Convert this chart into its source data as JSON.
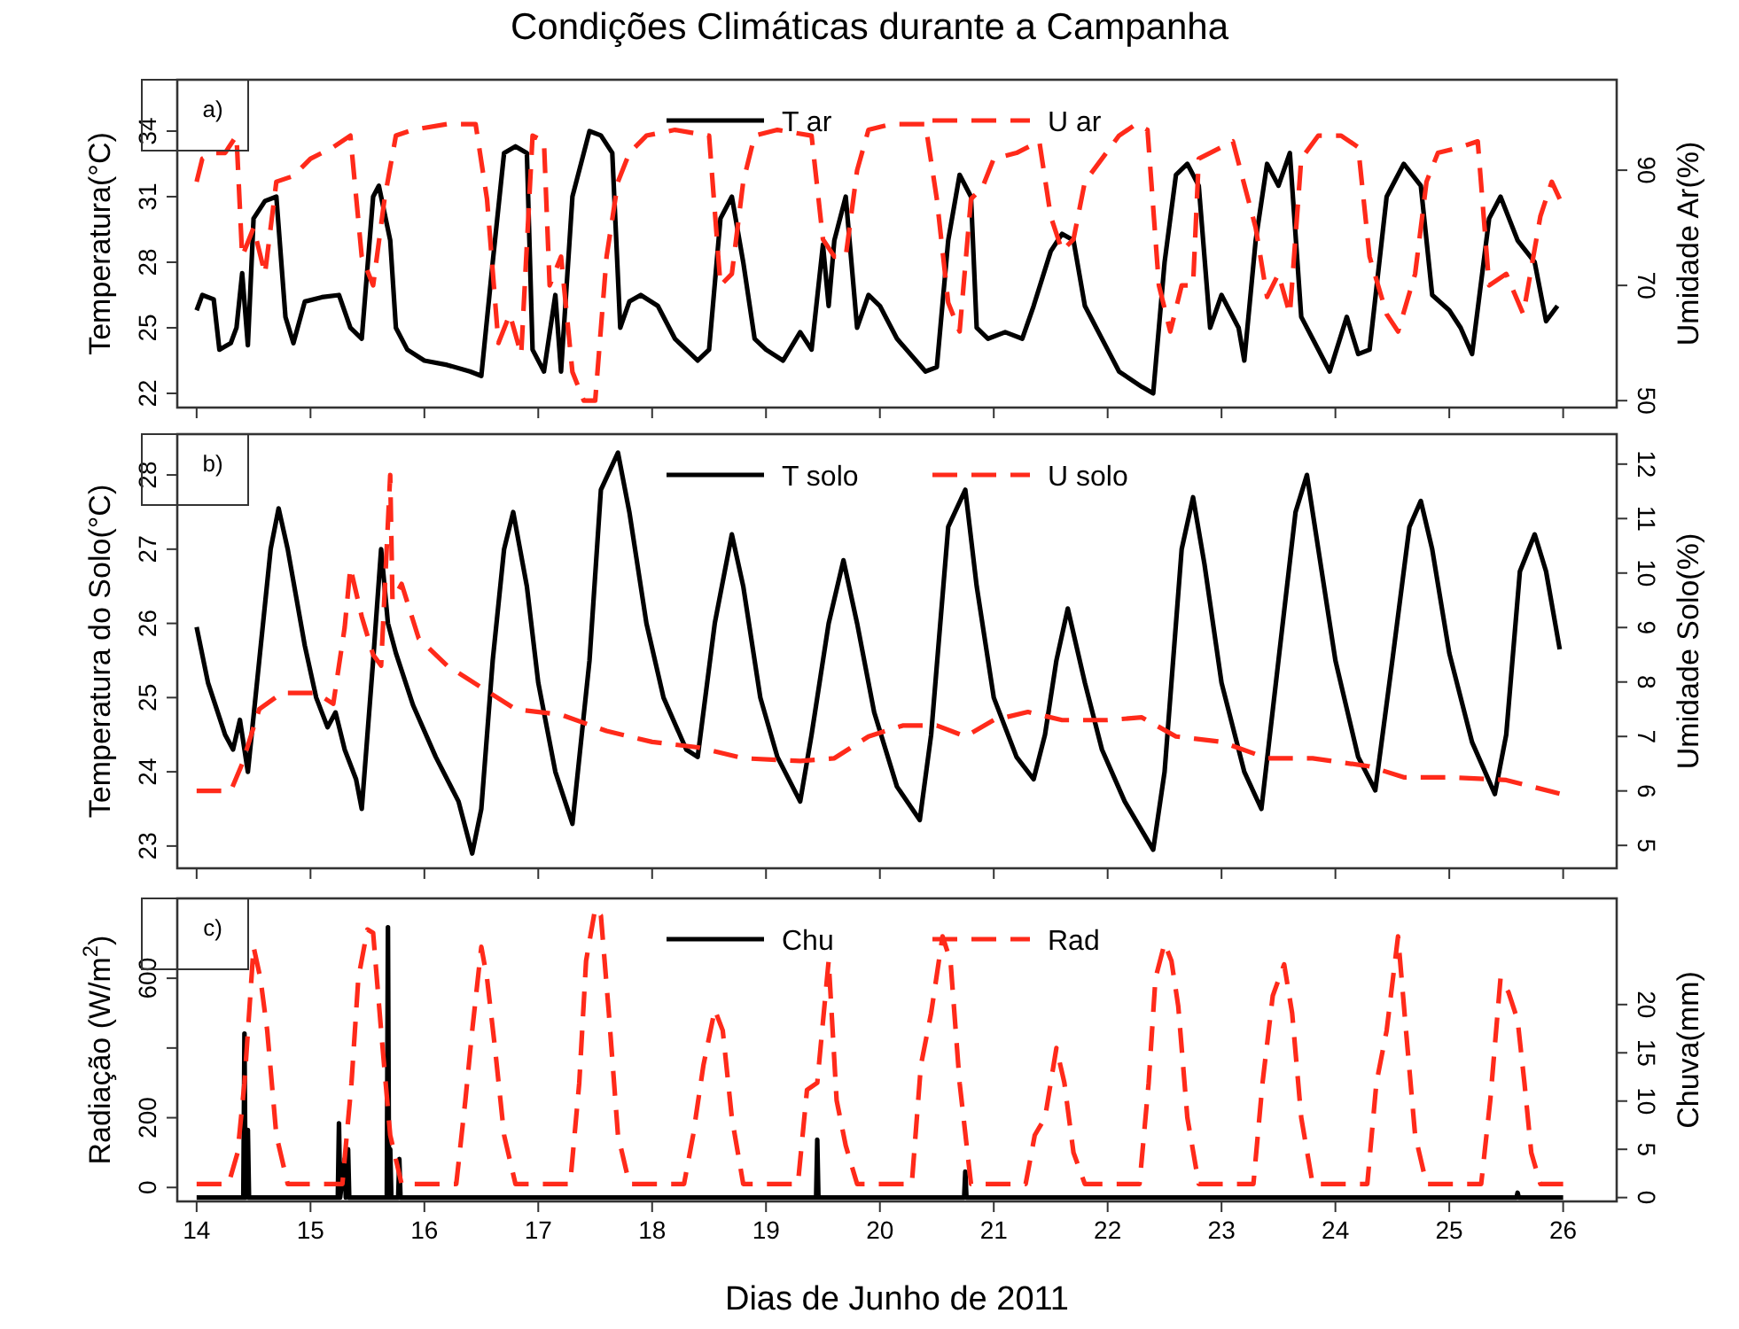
{
  "chart_data": [
    {
      "type": "line",
      "title": "Condições Climáticas durante a Campanha",
      "ylabel": "Temperatura(°C)",
      "y2label": "Umidade Ar(%)",
      "annotations": [
        "a)"
      ],
      "legend": "top",
      "grid": false,
      "tick_labels": "y",
      "xlim": [
        13.83,
        26.47
      ],
      "xticks": [
        {
          "value": 14,
          "label": null
        },
        {
          "value": 15,
          "label": null
        },
        {
          "value": 16,
          "label": null
        },
        {
          "value": 17,
          "label": null
        },
        {
          "value": 18,
          "label": null
        },
        {
          "value": 19,
          "label": null
        },
        {
          "value": 20,
          "label": null
        },
        {
          "value": 21,
          "label": null
        },
        {
          "value": 22,
          "label": null
        },
        {
          "value": 23,
          "label": null
        },
        {
          "value": 24,
          "label": null
        },
        {
          "value": 25,
          "label": null
        },
        {
          "value": 26,
          "label": null
        }
      ],
      "ylim": [
        21.35,
        36.35
      ],
      "yticks": [
        22,
        25,
        28,
        31,
        34
      ],
      "y2lim": [
        48.8,
        105.7
      ],
      "y2ticks": [
        50,
        70,
        90
      ],
      "series": [
        {
          "name": "T ar",
          "color": "#000000",
          "line_style": "solid",
          "x": [
            14.0,
            14.05,
            14.15,
            14.2,
            14.3,
            14.35,
            14.4,
            14.45,
            14.5,
            14.6,
            14.7,
            14.78,
            14.85,
            14.95,
            15.1,
            15.25,
            15.35,
            15.45,
            15.55,
            15.6,
            15.7,
            15.75,
            15.85,
            16.0,
            16.2,
            16.4,
            16.5,
            16.6,
            16.7,
            16.8,
            16.9,
            16.95,
            17.05,
            17.15,
            17.2,
            17.3,
            17.45,
            17.55,
            17.65,
            17.72,
            17.8,
            17.9,
            18.05,
            18.2,
            18.3,
            18.4,
            18.5,
            18.6,
            18.7,
            18.8,
            18.9,
            19.0,
            19.15,
            19.3,
            19.4,
            19.5,
            19.55,
            19.6,
            19.7,
            19.8,
            19.9,
            20.0,
            20.15,
            20.4,
            20.5,
            20.6,
            20.7,
            20.8,
            20.85,
            20.95,
            21.1,
            21.25,
            21.35,
            21.5,
            21.6,
            21.7,
            21.8,
            21.9,
            22.0,
            22.1,
            22.3,
            22.4,
            22.5,
            22.6,
            22.7,
            22.8,
            22.9,
            23.0,
            23.15,
            23.2,
            23.3,
            23.4,
            23.5,
            23.6,
            23.7,
            23.8,
            23.95,
            24.1,
            24.2,
            24.3,
            24.45,
            24.6,
            24.75,
            24.85,
            25.0,
            25.1,
            25.2,
            25.35,
            25.45,
            25.6,
            25.75,
            25.85,
            25.95
          ],
          "values": [
            25.8,
            26.5,
            26.3,
            24.0,
            24.3,
            25.0,
            27.5,
            24.2,
            30.0,
            30.8,
            31.0,
            25.5,
            24.3,
            26.2,
            26.4,
            26.5,
            25.0,
            24.5,
            31.0,
            31.5,
            29.0,
            25.0,
            24.0,
            23.5,
            23.3,
            23.0,
            22.8,
            28.0,
            33.0,
            33.3,
            33.0,
            24.0,
            23.0,
            26.5,
            23.0,
            31.0,
            34.0,
            33.8,
            33.0,
            25.0,
            26.2,
            26.5,
            26.0,
            24.5,
            24.0,
            23.5,
            24.0,
            30.0,
            31.0,
            28.0,
            24.5,
            24.0,
            23.5,
            24.8,
            24.0,
            28.8,
            26.0,
            29.0,
            31.0,
            25.0,
            26.5,
            26.0,
            24.5,
            23.0,
            23.2,
            29.0,
            32.0,
            31.0,
            25.0,
            24.5,
            24.8,
            24.5,
            26.0,
            28.5,
            29.3,
            29.0,
            26.0,
            25.0,
            24.0,
            23.0,
            22.3,
            22.0,
            28.0,
            32.0,
            32.5,
            31.5,
            25.0,
            26.5,
            25.0,
            23.5,
            29.0,
            32.5,
            31.5,
            33.0,
            25.5,
            24.5,
            23.0,
            25.5,
            23.8,
            24.0,
            31.0,
            32.5,
            31.5,
            26.5,
            25.8,
            25.0,
            23.8,
            30.0,
            31.0,
            29.0,
            28.0,
            25.3,
            26.0
          ]
        },
        {
          "name": "U ar",
          "color": "#ff2a1a",
          "line_style": "dashed",
          "axis": "y2",
          "x": [
            14.0,
            14.05,
            14.15,
            14.25,
            14.35,
            14.4,
            14.5,
            14.6,
            14.7,
            14.85,
            15.0,
            15.2,
            15.35,
            15.45,
            15.55,
            15.65,
            15.75,
            15.9,
            16.2,
            16.45,
            16.55,
            16.65,
            16.75,
            16.85,
            16.95,
            17.05,
            17.1,
            17.2,
            17.3,
            17.4,
            17.5,
            17.6,
            17.7,
            17.8,
            17.95,
            18.2,
            18.5,
            18.6,
            18.7,
            18.8,
            18.9,
            19.1,
            19.4,
            19.5,
            19.6,
            19.7,
            19.8,
            19.9,
            20.1,
            20.4,
            20.5,
            20.6,
            20.7,
            20.8,
            20.9,
            21.0,
            21.2,
            21.4,
            21.5,
            21.6,
            21.7,
            21.8,
            21.95,
            22.1,
            22.25,
            22.35,
            22.45,
            22.55,
            22.65,
            22.75,
            22.8,
            22.9,
            23.1,
            23.3,
            23.4,
            23.5,
            23.6,
            23.7,
            23.85,
            24.05,
            24.2,
            24.3,
            24.45,
            24.55,
            24.7,
            24.8,
            24.9,
            25.1,
            25.25,
            25.35,
            25.5,
            25.65,
            25.8,
            25.9,
            25.97
          ],
          "values": [
            88,
            92,
            93,
            93,
            96,
            75,
            80,
            72,
            88,
            89,
            92,
            94,
            96,
            75,
            70,
            85,
            96,
            97,
            98,
            98,
            85,
            60,
            65,
            58,
            96,
            95,
            70,
            75,
            55,
            50,
            50,
            75,
            88,
            93,
            96,
            97,
            96,
            70,
            72,
            88,
            96,
            97,
            96,
            78,
            75,
            75,
            90,
            97,
            98,
            98,
            85,
            67,
            62,
            85,
            87,
            92,
            93,
            95,
            82,
            76,
            78,
            88,
            92,
            96,
            98,
            97,
            70,
            62,
            70,
            70,
            92,
            93,
            95,
            80,
            68,
            72,
            65,
            92,
            96,
            96,
            94,
            75,
            65,
            62,
            72,
            88,
            93,
            94,
            95,
            70,
            72,
            65,
            82,
            88,
            85
          ]
        }
      ]
    },
    {
      "type": "line",
      "ylabel": "Temperatura do Solo(°C)",
      "y2label": "Umidade Solo(%)",
      "annotations": [
        "b)"
      ],
      "legend": "top",
      "grid": false,
      "tick_labels": "y",
      "xlim": [
        13.83,
        26.47
      ],
      "xticks": [
        {
          "value": 14,
          "label": null
        },
        {
          "value": 15,
          "label": null
        },
        {
          "value": 16,
          "label": null
        },
        {
          "value": 17,
          "label": null
        },
        {
          "value": 18,
          "label": null
        },
        {
          "value": 19,
          "label": null
        },
        {
          "value": 20,
          "label": null
        },
        {
          "value": 21,
          "label": null
        },
        {
          "value": 22,
          "label": null
        },
        {
          "value": 23,
          "label": null
        },
        {
          "value": 24,
          "label": null
        },
        {
          "value": 25,
          "label": null
        },
        {
          "value": 26,
          "label": null
        }
      ],
      "ylim": [
        22.7,
        28.55
      ],
      "yticks": [
        23,
        24,
        25,
        26,
        27,
        28
      ],
      "y2lim": [
        4.58,
        12.55
      ],
      "y2ticks": [
        5,
        6,
        7,
        8,
        9,
        10,
        11,
        12
      ],
      "series": [
        {
          "name": "T solo",
          "color": "#000000",
          "line_style": "solid",
          "x": [
            14.0,
            14.1,
            14.25,
            14.32,
            14.38,
            14.45,
            14.55,
            14.65,
            14.72,
            14.8,
            14.95,
            15.05,
            15.15,
            15.22,
            15.3,
            15.4,
            15.45,
            15.55,
            15.62,
            15.68,
            15.75,
            15.9,
            16.1,
            16.3,
            16.42,
            16.5,
            16.6,
            16.7,
            16.78,
            16.9,
            17.0,
            17.15,
            17.3,
            17.45,
            17.55,
            17.7,
            17.8,
            17.95,
            18.1,
            18.3,
            18.4,
            18.55,
            18.7,
            18.8,
            18.95,
            19.1,
            19.3,
            19.4,
            19.55,
            19.68,
            19.8,
            19.95,
            20.15,
            20.35,
            20.45,
            20.6,
            20.75,
            20.85,
            21.0,
            21.2,
            21.35,
            21.45,
            21.55,
            21.65,
            21.8,
            21.95,
            22.15,
            22.4,
            22.5,
            22.65,
            22.75,
            22.85,
            23.0,
            23.2,
            23.35,
            23.5,
            23.65,
            23.75,
            23.85,
            24.0,
            24.2,
            24.35,
            24.5,
            24.65,
            24.75,
            24.85,
            25.0,
            25.2,
            25.4,
            25.5,
            25.62,
            25.75,
            25.85,
            25.97
          ],
          "values": [
            25.95,
            25.2,
            24.5,
            24.3,
            24.7,
            24.0,
            25.5,
            27.0,
            27.55,
            27.0,
            25.7,
            25.0,
            24.6,
            24.8,
            24.3,
            23.9,
            23.5,
            25.5,
            27.0,
            26.0,
            25.6,
            24.9,
            24.2,
            23.6,
            22.9,
            23.5,
            25.5,
            27.0,
            27.5,
            26.5,
            25.2,
            24.0,
            23.3,
            25.5,
            27.8,
            28.3,
            27.5,
            26.0,
            25.0,
            24.3,
            24.2,
            26.0,
            27.2,
            26.5,
            25.0,
            24.2,
            23.6,
            24.5,
            26.0,
            26.85,
            26.0,
            24.8,
            23.8,
            23.35,
            24.5,
            27.3,
            27.8,
            26.5,
            25.0,
            24.2,
            23.9,
            24.5,
            25.5,
            26.2,
            25.2,
            24.3,
            23.6,
            22.95,
            24.0,
            27.0,
            27.7,
            26.8,
            25.2,
            24.0,
            23.5,
            25.5,
            27.5,
            28.0,
            27.0,
            25.5,
            24.2,
            23.75,
            25.5,
            27.3,
            27.65,
            27.0,
            25.6,
            24.4,
            23.7,
            24.5,
            26.7,
            27.2,
            26.7,
            25.65
          ]
        },
        {
          "name": "U solo",
          "color": "#ff2a1a",
          "line_style": "dashed",
          "axis": "y2",
          "x": [
            14.0,
            14.3,
            14.4,
            14.55,
            14.75,
            15.05,
            15.2,
            15.3,
            15.35,
            15.45,
            15.55,
            15.62,
            15.7,
            15.72,
            15.8,
            15.95,
            16.2,
            16.5,
            16.8,
            17.2,
            17.6,
            18.0,
            18.4,
            18.8,
            19.3,
            19.6,
            19.9,
            20.2,
            20.5,
            20.75,
            21.0,
            21.3,
            21.6,
            22.0,
            22.3,
            22.6,
            23.0,
            23.4,
            23.8,
            24.3,
            24.6,
            25.0,
            25.5,
            25.97
          ],
          "values": [
            6.0,
            6.0,
            6.5,
            7.5,
            7.8,
            7.8,
            7.6,
            9.0,
            10.1,
            9.2,
            8.5,
            8.3,
            11.8,
            9.5,
            9.8,
            8.8,
            8.3,
            7.9,
            7.5,
            7.4,
            7.1,
            6.9,
            6.8,
            6.6,
            6.55,
            6.6,
            7.0,
            7.2,
            7.2,
            7.0,
            7.3,
            7.45,
            7.3,
            7.3,
            7.35,
            7.0,
            6.9,
            6.6,
            6.6,
            6.45,
            6.25,
            6.25,
            6.2,
            5.95
          ]
        }
      ]
    },
    {
      "type": "line",
      "ylabel": "Radiação (W/m$^{2}$)",
      "y2label": "Chuva(mm)",
      "xlabel": "Dias de Junho de 2011",
      "annotations": [
        "c)"
      ],
      "legend": "top",
      "grid": false,
      "xlim": [
        13.83,
        26.47
      ],
      "xticks": [
        14,
        15,
        16,
        17,
        18,
        19,
        20,
        21,
        22,
        23,
        24,
        25,
        26
      ],
      "ylim": [
        -40,
        829
      ],
      "yticks": [
        0,
        200,
        {
          "value": 400,
          "label": null
        },
        600
      ],
      "y2lim": [
        -0.4,
        31
      ],
      "y2ticks": [
        0,
        5,
        10,
        15,
        20
      ],
      "series": [
        {
          "name": "Chu",
          "color": "#000000",
          "line_style": "solid",
          "axis": "y2",
          "x": [
            14.0,
            14.41,
            14.42,
            14.43,
            14.45,
            14.46,
            15.24,
            15.25,
            15.26,
            15.3,
            15.31,
            15.33,
            15.34,
            15.67,
            15.68,
            15.69,
            15.7,
            15.71,
            15.77,
            15.78,
            15.79,
            19.44,
            19.45,
            19.46,
            20.74,
            20.75,
            20.76,
            25.59,
            25.6,
            25.61,
            26.0
          ],
          "values": [
            0,
            0,
            17,
            0,
            7,
            0,
            0,
            7.7,
            0,
            4,
            0,
            5,
            0,
            0,
            28,
            0,
            5,
            0,
            0,
            4,
            0,
            0,
            6,
            0,
            0,
            2.7,
            0,
            0,
            0.5,
            0,
            0
          ]
        },
        {
          "name": "Rad",
          "color": "#ff2a1a",
          "line_style": "dashed",
          "x": [
            14.0,
            14.28,
            14.36,
            14.42,
            14.5,
            14.56,
            14.62,
            14.7,
            14.8,
            15.28,
            15.36,
            15.42,
            15.5,
            15.55,
            15.62,
            15.7,
            15.8,
            16.28,
            16.36,
            16.42,
            16.5,
            16.55,
            16.62,
            16.7,
            16.8,
            17.28,
            17.36,
            17.42,
            17.5,
            17.55,
            17.62,
            17.7,
            17.8,
            18.28,
            18.36,
            18.45,
            18.55,
            18.62,
            18.7,
            18.8,
            19.28,
            19.36,
            19.45,
            19.55,
            19.62,
            19.7,
            19.8,
            20.28,
            20.36,
            20.45,
            20.55,
            20.62,
            20.7,
            20.8,
            21.28,
            21.36,
            21.45,
            21.55,
            21.62,
            21.7,
            21.8,
            22.28,
            22.36,
            22.42,
            22.5,
            22.56,
            22.62,
            22.7,
            22.8,
            23.28,
            23.36,
            23.45,
            23.55,
            23.62,
            23.7,
            23.8,
            24.28,
            24.36,
            24.45,
            24.55,
            24.62,
            24.7,
            24.8,
            25.28,
            25.36,
            25.45,
            25.52,
            25.6,
            25.66,
            25.72,
            25.8,
            26.0
          ],
          "values": [
            10,
            10,
            100,
            300,
            690,
            600,
            450,
            150,
            10,
            10,
            300,
            600,
            740,
            730,
            450,
            150,
            10,
            10,
            250,
            450,
            690,
            600,
            400,
            150,
            10,
            10,
            300,
            650,
            800,
            780,
            500,
            150,
            10,
            10,
            150,
            350,
            510,
            450,
            200,
            10,
            10,
            280,
            300,
            650,
            250,
            120,
            10,
            10,
            350,
            500,
            720,
            650,
            300,
            10,
            10,
            150,
            200,
            400,
            300,
            100,
            10,
            10,
            300,
            600,
            700,
            650,
            520,
            200,
            10,
            10,
            300,
            550,
            640,
            500,
            200,
            10,
            10,
            300,
            450,
            720,
            450,
            150,
            10,
            10,
            250,
            600,
            560,
            480,
            300,
            100,
            10,
            10
          ]
        }
      ]
    }
  ]
}
